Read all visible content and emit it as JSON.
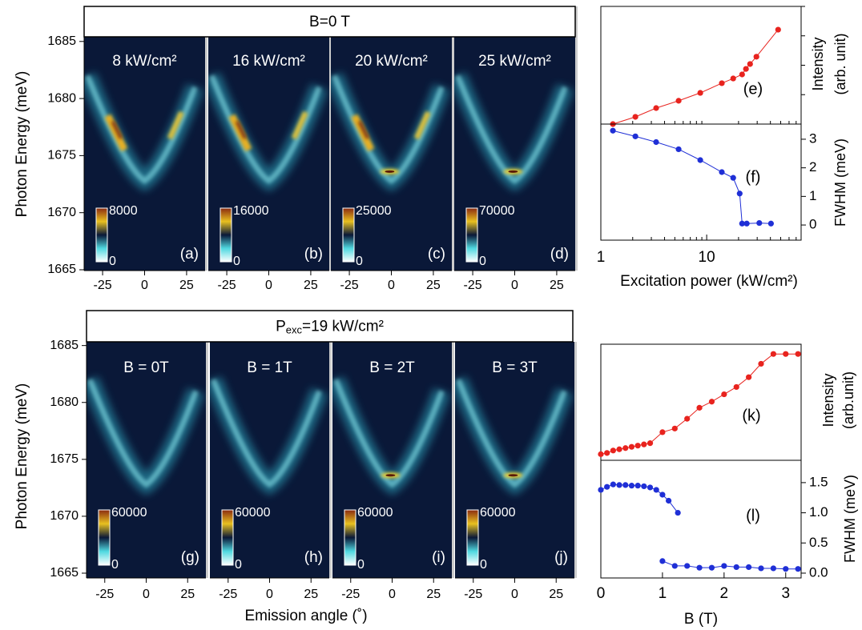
{
  "chart_data": [
    {
      "type": "heatmap-row",
      "header": "B=0 T",
      "y_label": "Photon Energy (meV)",
      "ylim": [
        1665,
        1688
      ],
      "yticks": [
        1665,
        1670,
        1675,
        1680,
        1685
      ],
      "xlim": [
        -36,
        36
      ],
      "xticks": [
        -25,
        0,
        25
      ],
      "panels": [
        {
          "title": "8 kW/cm²",
          "label": "(a)",
          "colorbar_ticks": [
            0,
            8000
          ],
          "peak": "streak"
        },
        {
          "title": "16 kW/cm²",
          "label": "(b)",
          "colorbar_ticks": [
            0,
            16000
          ],
          "peak": "streak"
        },
        {
          "title": "20 kW/cm²",
          "label": "(c)",
          "colorbar_ticks": [
            0,
            25000
          ],
          "peak": "both"
        },
        {
          "title": "25 kW/cm²",
          "label": "(d)",
          "colorbar_ticks": [
            0,
            70000
          ],
          "peak": "spot"
        }
      ]
    },
    {
      "type": "heatmap-row",
      "header": {
        "main": "P",
        "sub": "exc",
        "rest": "=19 kW/cm²"
      },
      "y_label": "Photon Energy (meV)",
      "x_label": "Emission angle (˚)",
      "ylim": [
        1665,
        1688
      ],
      "yticks": [
        1665,
        1670,
        1675,
        1680,
        1685
      ],
      "xlim": [
        -36,
        36
      ],
      "xticks": [
        -25,
        0,
        25
      ],
      "panels": [
        {
          "title": "B = 0T",
          "label": "(g)",
          "colorbar_ticks": [
            0,
            60000
          ],
          "peak": "none"
        },
        {
          "title": "B = 1T",
          "label": "(h)",
          "colorbar_ticks": [
            0,
            60000
          ],
          "peak": "none"
        },
        {
          "title": "B = 2T",
          "label": "(i)",
          "colorbar_ticks": [
            0,
            60000
          ],
          "peak": "spot"
        },
        {
          "title": "B = 3T",
          "label": "(j)",
          "colorbar_ticks": [
            0,
            60000
          ],
          "peak": "spot"
        }
      ]
    },
    {
      "type": "line",
      "label": "(e)",
      "y_label": [
        "Intensity",
        "(arb. unit)"
      ],
      "log_x": true,
      "log_y": true,
      "xlim": [
        1,
        78
      ],
      "ylim": [
        1,
        10000
      ],
      "color": "#e8231e",
      "x": [
        1.3,
        2.12,
        3.33,
        5.43,
        8.7,
        13.9,
        17.8,
        21.6,
        23.5,
        25.7,
        29.5,
        47.3
      ],
      "values": [
        1,
        1.76,
        3.5,
        6.2,
        11.5,
        24.5,
        35.5,
        48.6,
        75,
        110,
        195,
        1620
      ]
    },
    {
      "type": "line",
      "label": "(f)",
      "y_label": "FWHM (meV)",
      "x_label": "Excitation power (kW/cm²)",
      "log_x": true,
      "xlim": [
        1,
        78
      ],
      "xticks": [
        1,
        10
      ],
      "ylim": [
        -0.53,
        3.53
      ],
      "yticks": [
        0,
        1,
        2,
        3
      ],
      "color": "#1f2fd6",
      "x": [
        1.3,
        2.12,
        3.33,
        5.43,
        8.7,
        13.9,
        17.8,
        20.5,
        21.6,
        23.9,
        31.4,
        40.5
      ],
      "values": [
        3.3,
        3.1,
        2.9,
        2.65,
        2.27,
        1.85,
        1.65,
        1.1,
        0.05,
        0.05,
        0.07,
        0.05
      ]
    },
    {
      "type": "line",
      "label": "(k)",
      "y_label": [
        "Intensity",
        "(arb.unit)"
      ],
      "xlim": [
        0,
        3.25
      ],
      "ylim": [
        0,
        9.5
      ],
      "color": "#e8231e",
      "x": [
        0,
        0.1,
        0.2,
        0.3,
        0.4,
        0.5,
        0.6,
        0.7,
        0.8,
        1.0,
        1.2,
        1.4,
        1.6,
        1.8,
        2.0,
        2.2,
        2.4,
        2.6,
        2.8,
        3.0,
        3.2
      ],
      "values": [
        0.5,
        0.6,
        0.8,
        0.9,
        1.0,
        1.1,
        1.2,
        1.3,
        1.4,
        2.3,
        2.6,
        3.4,
        4.3,
        4.8,
        5.4,
        6.0,
        6.8,
        7.9,
        8.7,
        8.7,
        8.7
      ]
    },
    {
      "type": "line",
      "label": "(l)",
      "y_label": "FWHM (meV)",
      "x_label": "B (T)",
      "xlim": [
        0,
        3.25
      ],
      "xticks": [
        0,
        1,
        2,
        3
      ],
      "ylim": [
        -0.08,
        1.87
      ],
      "yticks": [
        {
          "value": 0,
          "label": "0.0"
        },
        0.5,
        {
          "value": 1,
          "label": "1.0"
        },
        1.5
      ],
      "series": [
        {
          "color": "#1f2fd6",
          "x": [
            0,
            0.1,
            0.2,
            0.3,
            0.4,
            0.5,
            0.6,
            0.7,
            0.8,
            0.9,
            1.0,
            1.1,
            1.25
          ],
          "values": [
            1.38,
            1.43,
            1.47,
            1.46,
            1.46,
            1.45,
            1.45,
            1.44,
            1.42,
            1.38,
            1.3,
            1.2,
            1.0
          ]
        },
        {
          "color": "#1f2fd6",
          "x": [
            1.0,
            1.2,
            1.4,
            1.6,
            1.8,
            2.0,
            2.2,
            2.4,
            2.6,
            2.8,
            3.0,
            3.2
          ],
          "values": [
            0.2,
            0.12,
            0.12,
            0.09,
            0.09,
            0.12,
            0.1,
            0.1,
            0.08,
            0.08,
            0.07,
            0.07
          ]
        }
      ]
    }
  ]
}
